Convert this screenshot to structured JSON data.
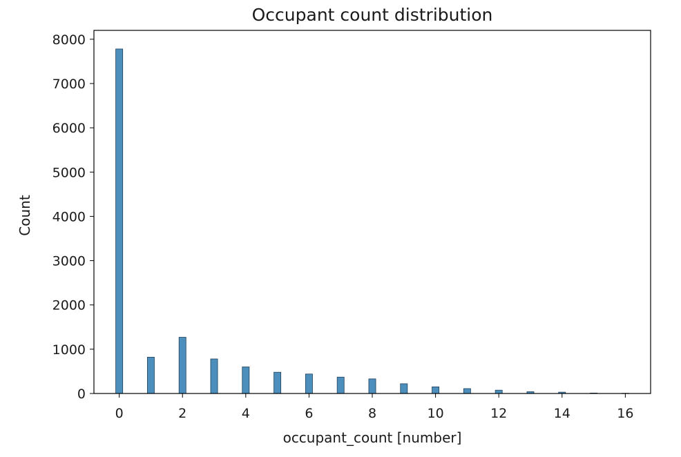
{
  "chart_data": {
    "type": "bar",
    "title": "Occupant count distribution",
    "xlabel": "occupant_count [number]",
    "ylabel": "Count",
    "xlim": [
      -0.8,
      16.8
    ],
    "ylim": [
      0,
      8200
    ],
    "xticks": [
      0,
      2,
      4,
      6,
      8,
      10,
      12,
      14,
      16
    ],
    "yticks": [
      0,
      1000,
      2000,
      3000,
      4000,
      5000,
      6000,
      7000,
      8000
    ],
    "x": [
      0,
      1,
      2,
      3,
      4,
      5,
      6,
      7,
      8,
      9,
      10,
      11,
      12,
      13,
      14,
      15,
      16
    ],
    "values": [
      7780,
      820,
      1270,
      780,
      600,
      480,
      440,
      370,
      330,
      220,
      150,
      110,
      75,
      40,
      30,
      10,
      5
    ],
    "bar_color": "#4c8fbd",
    "edge_color": "#1f3f5a",
    "grid": false
  }
}
